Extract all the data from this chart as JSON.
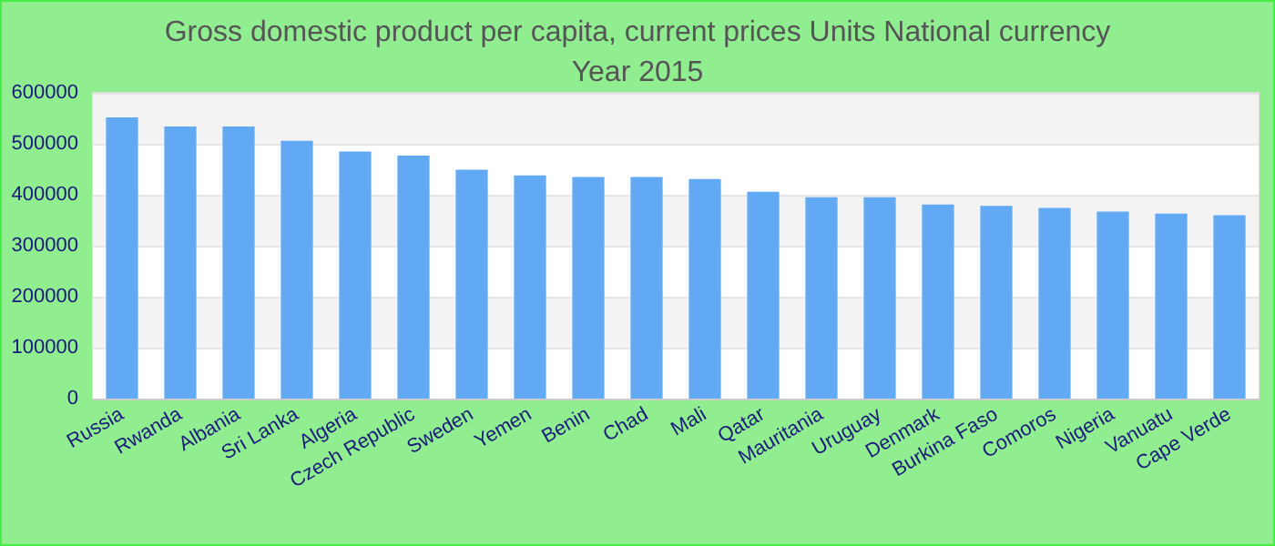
{
  "chart_data": {
    "type": "bar",
    "title": "Gross domestic product per capita, current prices Units National currency",
    "subtitle": "Year 2015",
    "categories": [
      "Russia",
      "Rwanda",
      "Albania",
      "Sri Lanka",
      "Algeria",
      "Czech Republic",
      "Sweden",
      "Yemen",
      "Benin",
      "Chad",
      "Mali",
      "Qatar",
      "Mauritania",
      "Uruguay",
      "Denmark",
      "Burkina Faso",
      "Comoros",
      "Nigeria",
      "Vanuatu",
      "Cape Verde"
    ],
    "values": [
      552000,
      534000,
      534000,
      506000,
      485000,
      477000,
      449000,
      438000,
      435000,
      435000,
      431000,
      406000,
      395000,
      395000,
      381000,
      378000,
      374000,
      367000,
      363000,
      360000
    ],
    "color": "#62a9f4",
    "ylim": [
      0,
      600000
    ],
    "yticks": [
      0,
      100000,
      200000,
      300000,
      400000,
      500000,
      600000
    ],
    "grid": "y"
  }
}
